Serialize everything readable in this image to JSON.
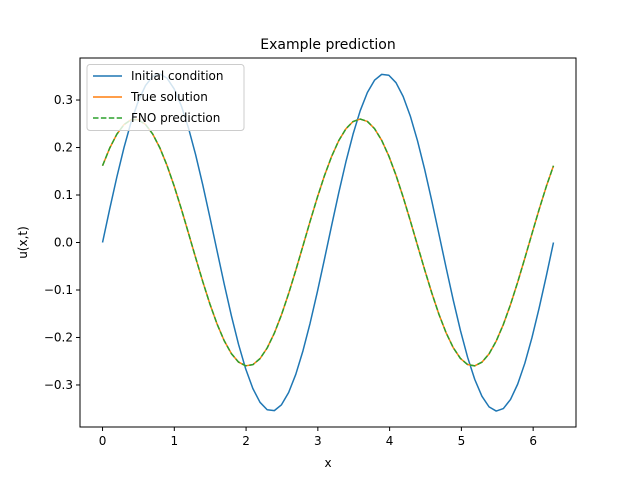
{
  "chart_data": {
    "type": "line",
    "title": "Example prediction",
    "xlabel": "x",
    "ylabel": "u(x,t)",
    "xlim": [
      -0.314,
      6.597
    ],
    "ylim": [
      -0.3885,
      0.3885
    ],
    "xticks": [
      0,
      1,
      2,
      3,
      4,
      5,
      6
    ],
    "yticks": [
      -0.3,
      -0.2,
      -0.1,
      0.0,
      0.1,
      0.2,
      0.3
    ],
    "xtick_labels": [
      "0",
      "1",
      "2",
      "3",
      "4",
      "5",
      "6"
    ],
    "ytick_labels": [
      "−0.3",
      "−0.2",
      "−0.1",
      "0.0",
      "0.1",
      "0.2",
      "0.3"
    ],
    "grid": false,
    "legend_position": "top-left",
    "x_range": [
      0,
      6.2832
    ],
    "num_points": 64,
    "series": [
      {
        "name": "Initial condition",
        "color": "#1f77b4",
        "style": "solid",
        "formula": "0.355*sin(2x)"
      },
      {
        "name": "True solution",
        "color": "#ff7f0e",
        "style": "solid",
        "formula": "0.26*cos(2x - 0.9)"
      },
      {
        "name": "FNO prediction",
        "color": "#2ca02c",
        "style": "dashed",
        "formula": "0.26*cos(2x - 0.9)"
      }
    ]
  }
}
